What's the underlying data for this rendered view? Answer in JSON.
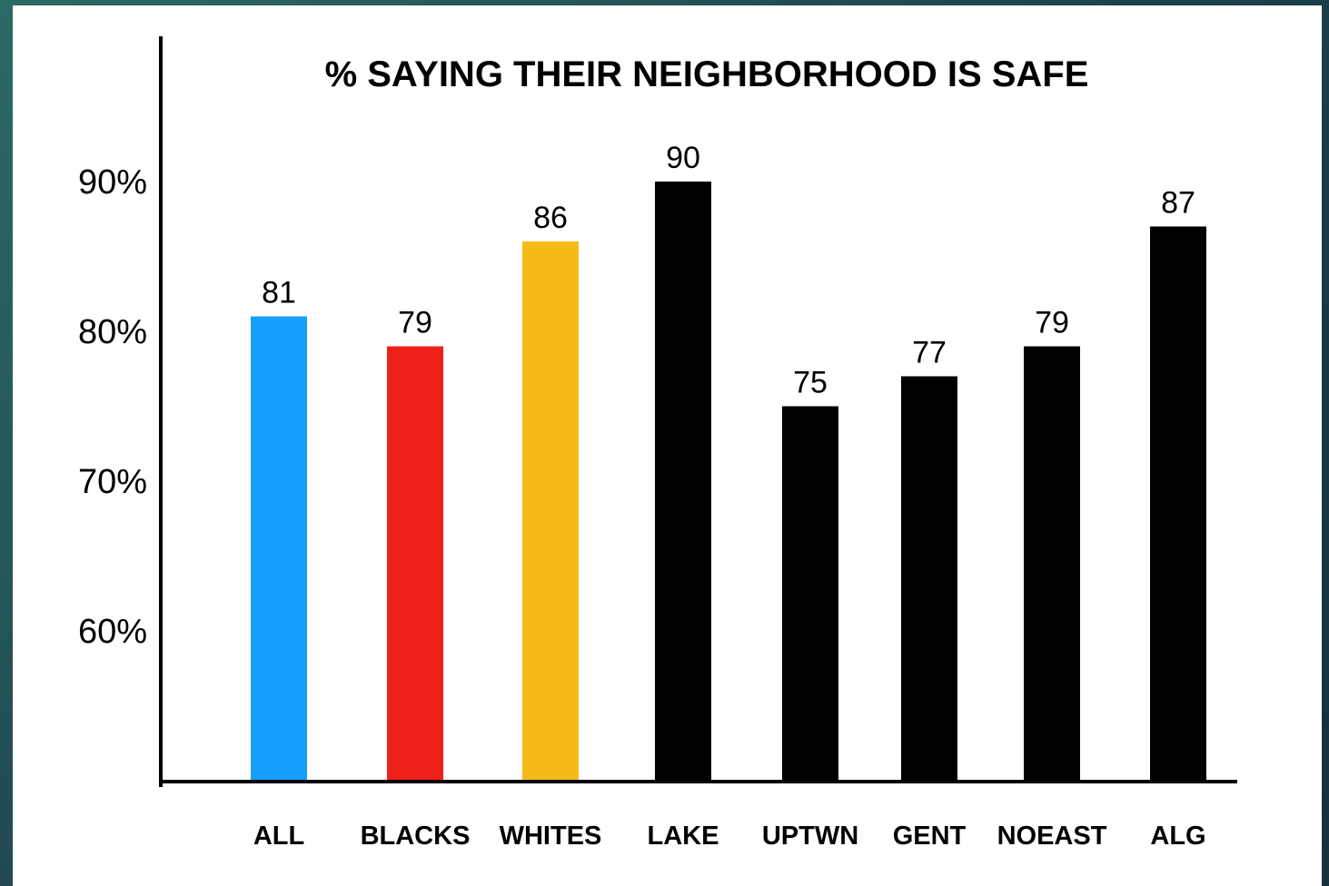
{
  "chart_data": {
    "type": "bar",
    "title": "% SAYING THEIR NEIGHBORHOOD IS SAFE",
    "xlabel": "",
    "ylabel": "",
    "categories": [
      "ALL",
      "BLACKS",
      "WHITES",
      "LAKE",
      "UPTWN",
      "GENT",
      "NOEAST",
      "ALG"
    ],
    "values": [
      81,
      79,
      86,
      90,
      75,
      77,
      79,
      87
    ],
    "data_labels": [
      "81",
      "79",
      "86",
      "90",
      "75",
      "77",
      "79",
      "87"
    ],
    "colors": [
      "#169ffb",
      "#ee2118",
      "#f6bb19",
      "#000000",
      "#000000",
      "#000000",
      "#000000",
      "#000000"
    ],
    "y_ticks": [
      {
        "value": 90,
        "label": "90%"
      },
      {
        "value": 80,
        "label": "80%"
      },
      {
        "value": 70,
        "label": "70%"
      },
      {
        "value": 60,
        "label": "60%"
      }
    ],
    "ylim": [
      50,
      100
    ],
    "grid": false,
    "legend": "none"
  }
}
